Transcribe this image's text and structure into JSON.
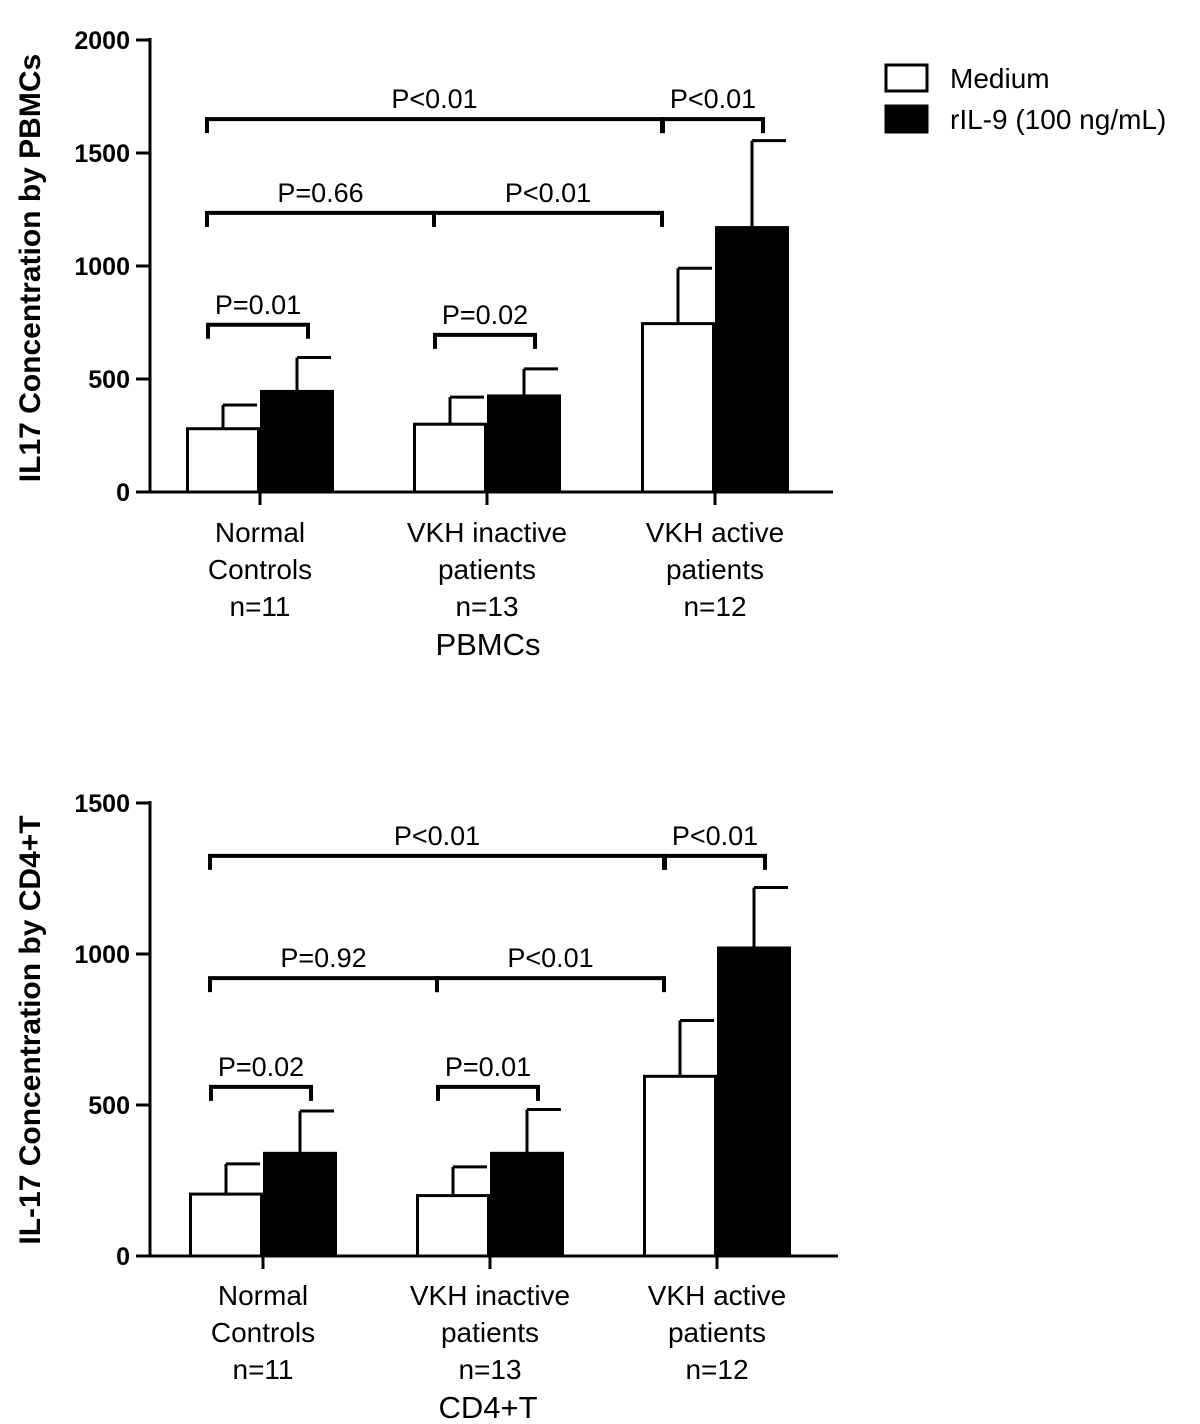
{
  "legend": {
    "items": [
      {
        "label": "Medium",
        "color": "#ffffff"
      },
      {
        "label": "rIL-9 (100 ng/mL)",
        "color": "#000000"
      }
    ]
  },
  "chart_data": [
    {
      "type": "bar",
      "ylabel": "IL17 Concentration by PBMCs",
      "xlabel": "PBMCs",
      "ylim": [
        0,
        2000
      ],
      "yticks": [
        0,
        500,
        1000,
        1500,
        2000
      ],
      "categories": [
        [
          "Normal",
          "Controls",
          "n=11"
        ],
        [
          "VKH inactive",
          "patients",
          "n=13"
        ],
        [
          "VKH active",
          "patients",
          "n=12"
        ]
      ],
      "series": [
        {
          "name": "Medium",
          "values": [
            280,
            300,
            745
          ],
          "errors": [
            105,
            120,
            245
          ]
        },
        {
          "name": "rIL-9 (100 ng/mL)",
          "values": [
            445,
            425,
            1170
          ],
          "errors": [
            150,
            120,
            385
          ]
        }
      ],
      "significance": [
        {
          "label": "P=0.01",
          "from": [
            0,
            0
          ],
          "to": [
            0,
            1
          ],
          "at": 740
        },
        {
          "label": "P=0.02",
          "from": [
            1,
            0
          ],
          "to": [
            1,
            1
          ],
          "at": 695
        },
        {
          "label": "P=0.66",
          "from": [
            0,
            0
          ],
          "to": [
            1,
            0
          ],
          "at": 1235
        },
        {
          "label": "P<0.01",
          "from": [
            1,
            0
          ],
          "to": [
            2,
            0
          ],
          "at": 1235
        },
        {
          "label": "P<0.01",
          "from": [
            0,
            0
          ],
          "to": [
            2,
            0
          ],
          "at": 1650
        },
        {
          "label": "P<0.01",
          "from": [
            2,
            0
          ],
          "to": [
            2,
            1
          ],
          "at": 1650
        }
      ]
    },
    {
      "type": "bar",
      "ylabel": "IL-17 Concentration by CD4+T",
      "xlabel": "CD4+T",
      "ylim": [
        0,
        1500
      ],
      "yticks": [
        0,
        500,
        1000,
        1500
      ],
      "categories": [
        [
          "Normal",
          "Controls",
          "n=11"
        ],
        [
          "VKH inactive",
          "patients",
          "n=13"
        ],
        [
          "VKH active",
          "patients",
          "n=12"
        ]
      ],
      "series": [
        {
          "name": "Medium",
          "values": [
            205,
            200,
            595
          ],
          "errors": [
            100,
            95,
            185
          ]
        },
        {
          "name": "rIL-9 (100 ng/mL)",
          "values": [
            340,
            340,
            1020
          ],
          "errors": [
            140,
            145,
            200
          ]
        }
      ],
      "significance": [
        {
          "label": "P=0.02",
          "from": [
            0,
            0
          ],
          "to": [
            0,
            1
          ],
          "at": 560
        },
        {
          "label": "P=0.01",
          "from": [
            1,
            0
          ],
          "to": [
            1,
            1
          ],
          "at": 560
        },
        {
          "label": "P=0.92",
          "from": [
            0,
            0
          ],
          "to": [
            1,
            0
          ],
          "at": 920
        },
        {
          "label": "P<0.01",
          "from": [
            1,
            0
          ],
          "to": [
            2,
            0
          ],
          "at": 920
        },
        {
          "label": "P<0.01",
          "from": [
            0,
            0
          ],
          "to": [
            2,
            0
          ],
          "at": 1325
        },
        {
          "label": "P<0.01",
          "from": [
            2,
            0
          ],
          "to": [
            2,
            1
          ],
          "at": 1325
        }
      ]
    }
  ]
}
